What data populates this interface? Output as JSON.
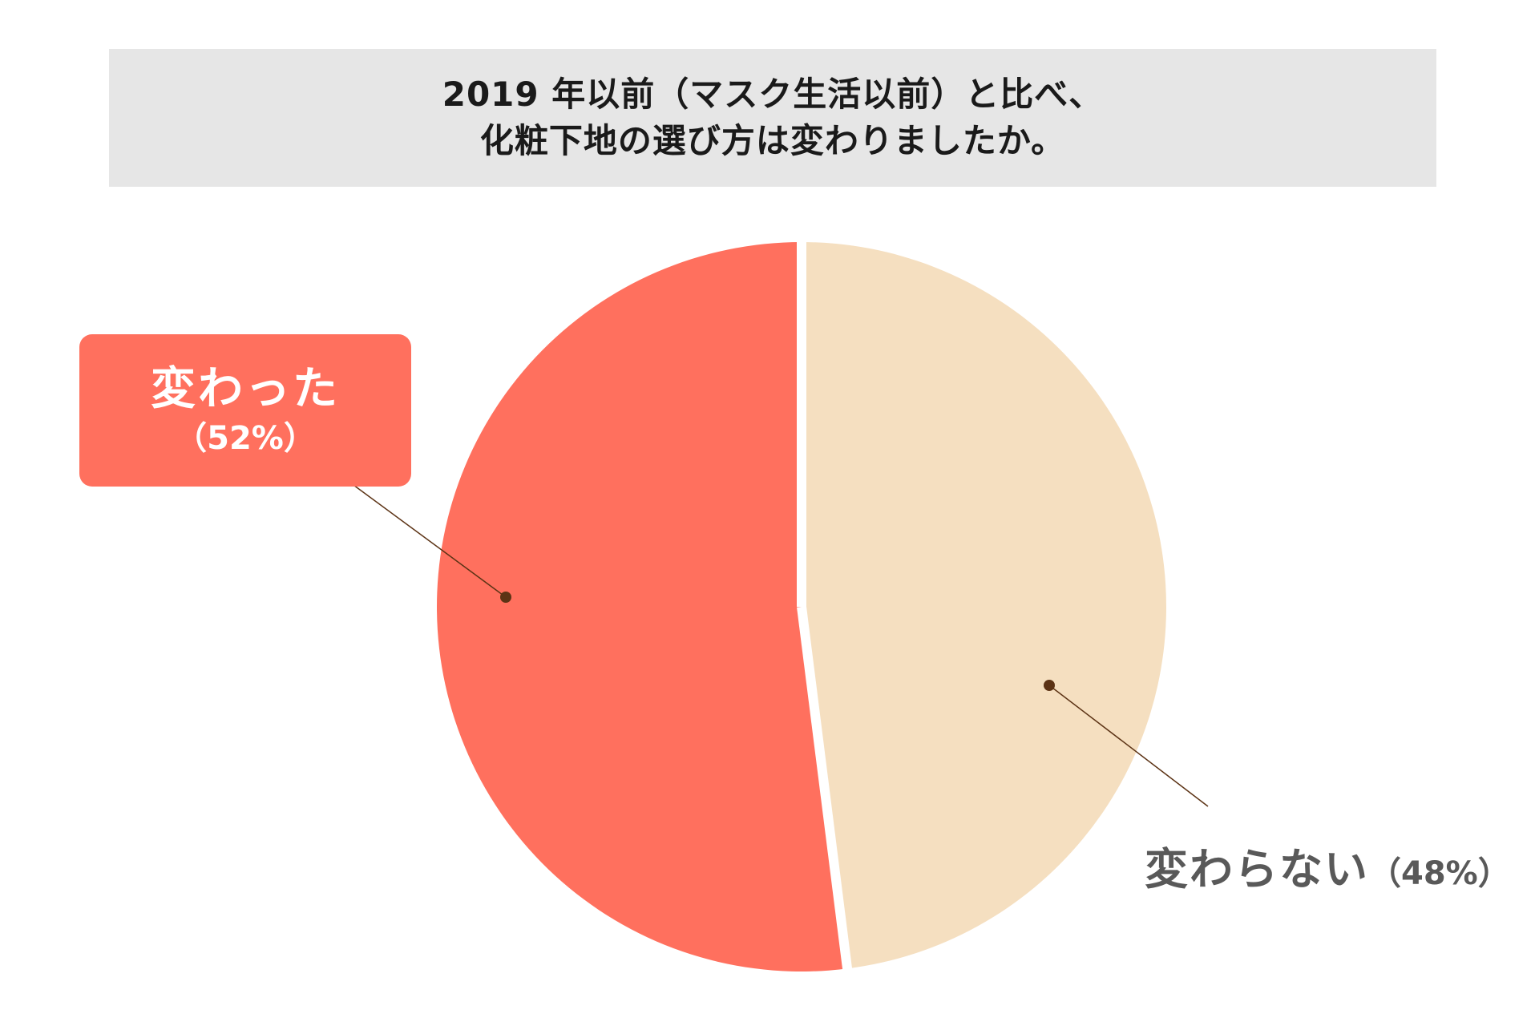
{
  "title": {
    "line1": "2019 年以前（マスク生活以前）と比べ、",
    "line2": "化粧下地の選び方は変わりましたか。"
  },
  "chart_data": {
    "type": "pie",
    "title": "2019 年以前（マスク生活以前）と比べ、化粧下地の選び方は変わりましたか。",
    "start": "top",
    "direction": "counterclockwise",
    "slices": [
      {
        "label": "変わった",
        "pct_label": "（52%）",
        "value": 52,
        "color": "#ff705e"
      },
      {
        "label": "変わらない",
        "pct_label": "（48%）",
        "value": 48,
        "color": "#f5dfc0"
      }
    ],
    "leader_color": "#5c3315"
  },
  "colors": {
    "title_background": "#e6e6e6",
    "label_box_background": "#ff705e",
    "plain_label_text": "#595959"
  }
}
